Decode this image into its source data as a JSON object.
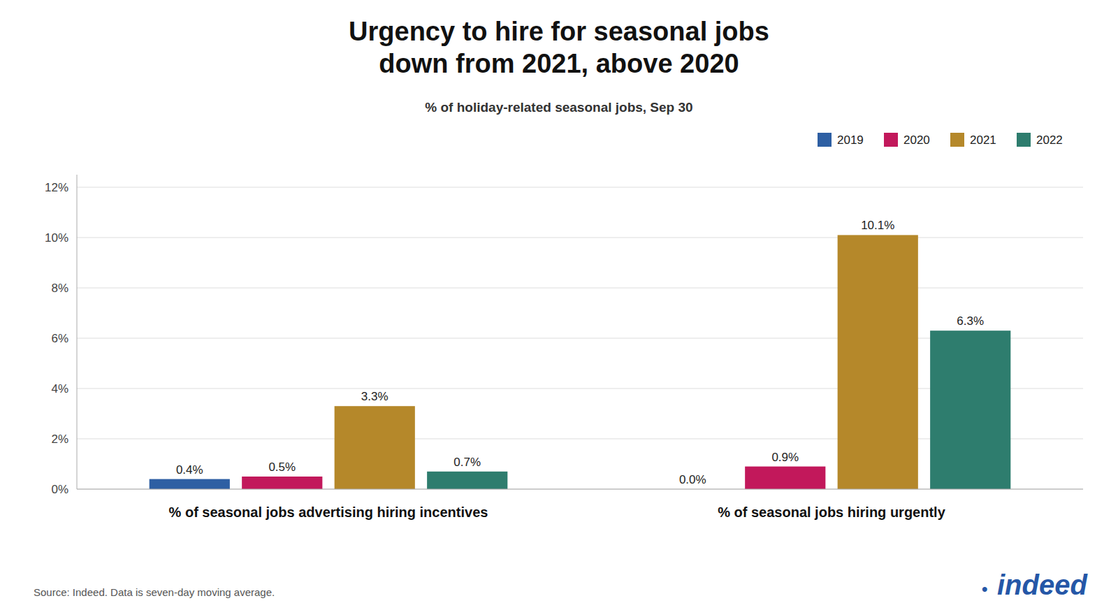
{
  "chart_data": {
    "type": "bar",
    "title": "Urgency to hire for seasonal jobs\ndown from 2021, above 2020",
    "subtitle": "% of holiday-related seasonal jobs, Sep 30",
    "categories": [
      "% of seasonal jobs advertising hiring incentives",
      "% of seasonal jobs hiring urgently"
    ],
    "series": [
      {
        "name": "2019",
        "color": "#2e5fa3",
        "values": [
          0.4,
          0.0
        ],
        "value_labels": [
          "0.4%",
          "0.0%"
        ]
      },
      {
        "name": "2020",
        "color": "#c2185b",
        "values": [
          0.5,
          0.9
        ],
        "value_labels": [
          "0.5%",
          "0.9%"
        ]
      },
      {
        "name": "2021",
        "color": "#b5882a",
        "values": [
          3.3,
          10.1
        ],
        "value_labels": [
          "3.3%",
          "10.1%"
        ]
      },
      {
        "name": "2022",
        "color": "#2e7d6e",
        "values": [
          0.7,
          6.3
        ],
        "value_labels": [
          "0.7%",
          "6.3%"
        ]
      }
    ],
    "ylim": [
      0,
      12.5
    ],
    "yticks": [
      {
        "value": 0,
        "label": "0%"
      },
      {
        "value": 2,
        "label": "2%"
      },
      {
        "value": 4,
        "label": "4%"
      },
      {
        "value": 6,
        "label": "6%"
      },
      {
        "value": 8,
        "label": "8%"
      },
      {
        "value": 10,
        "label": "10%"
      },
      {
        "value": 12,
        "label": "12%"
      }
    ],
    "grid": true,
    "legend": "top-right",
    "data_labels": true,
    "source": "Source: Indeed. Data is seven-day moving average.",
    "annotations": [
      {
        "text": "•",
        "color": "#2557a7"
      },
      {
        "text": "indeed",
        "color": "#2557a7"
      }
    ]
  }
}
